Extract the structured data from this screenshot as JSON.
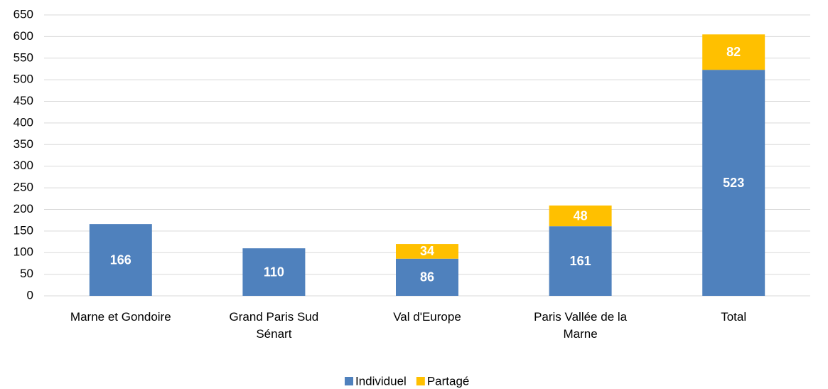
{
  "chart_data": {
    "type": "stacked_bar",
    "categories": [
      "Marne et Gondoire",
      "Grand Paris Sud Sénart",
      "Val d'Europe",
      "Paris Vallée de la Marne",
      "Total"
    ],
    "series": [
      {
        "name": "Individuel",
        "color": "#4f81bd",
        "values": [
          166,
          110,
          86,
          161,
          523
        ]
      },
      {
        "name": "Partagé",
        "color": "#ffc000",
        "values": [
          null,
          null,
          34,
          48,
          82
        ]
      }
    ],
    "ylim": [
      0,
      650
    ],
    "yticks": [
      0,
      50,
      100,
      150,
      200,
      250,
      300,
      350,
      400,
      450,
      500,
      550,
      600,
      650
    ],
    "grid": true,
    "legend": "bottom"
  }
}
